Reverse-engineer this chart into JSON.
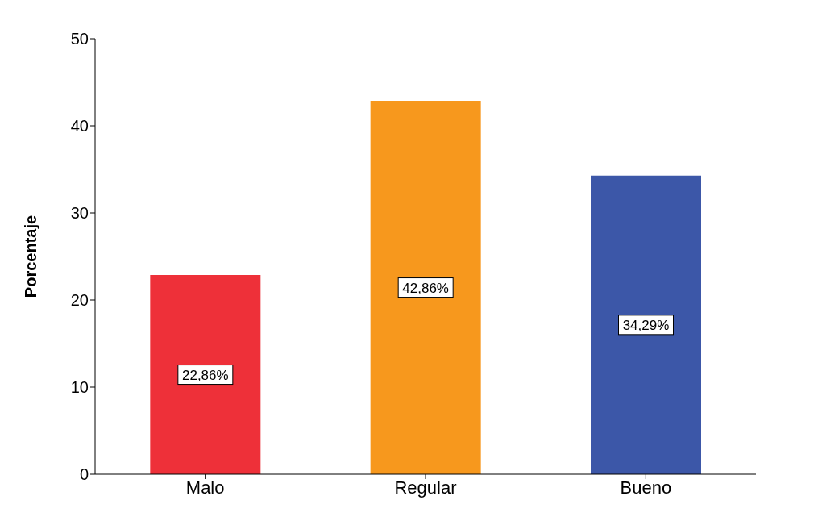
{
  "chart_data": {
    "type": "bar",
    "ylabel": "Porcentaje",
    "categories": [
      "Malo",
      "Regular",
      "Bueno"
    ],
    "values": [
      22.86,
      42.86,
      34.29
    ],
    "colors": [
      "#ee3039",
      "#f7981d",
      "#3c57a8"
    ],
    "value_labels": [
      "22,86%",
      "42,86%",
      "34,29%"
    ],
    "ylim": [
      0,
      50
    ],
    "yticks": [
      0,
      10,
      20,
      30,
      40,
      50
    ],
    "grid": false
  }
}
